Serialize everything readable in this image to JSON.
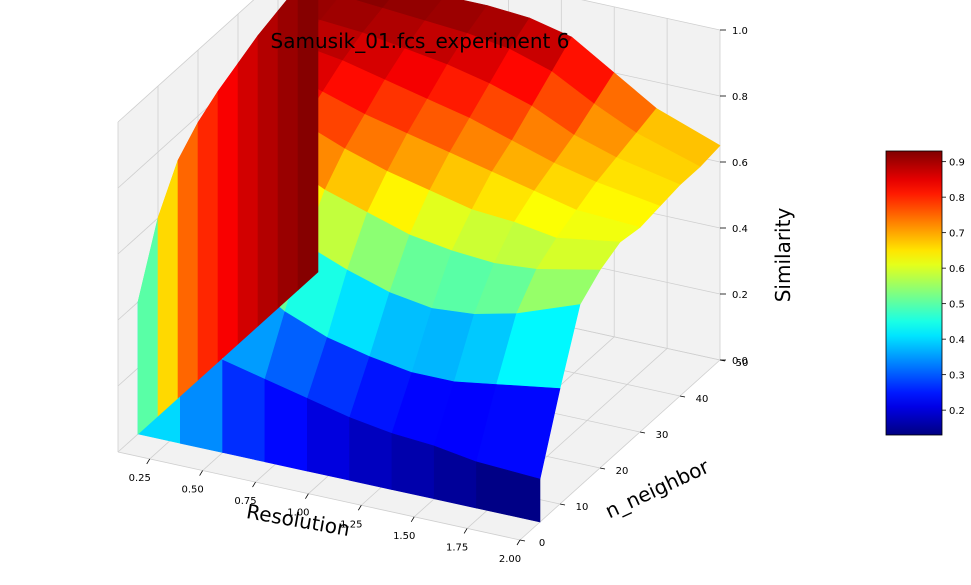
{
  "chart_data": {
    "type": "surface",
    "title": "Samusik_01.fcs_experiment 6",
    "xlabel": "Resolution",
    "ylabel": "n_neighbor",
    "zlabel": "Similarity",
    "xlim": [
      0.1,
      2.0
    ],
    "ylim": [
      0,
      50
    ],
    "zlim": [
      0.0,
      1.0
    ],
    "x_ticks": [
      "0.25",
      "0.50",
      "0.75",
      "1.00",
      "1.25",
      "1.50",
      "1.75",
      "2.00"
    ],
    "y_ticks": [
      "0",
      "10",
      "20",
      "30",
      "40",
      "50"
    ],
    "z_ticks": [
      "0.0",
      "0.2",
      "0.4",
      "0.6",
      "0.8",
      "1.0"
    ],
    "x": [
      0.1,
      0.3,
      0.5,
      0.7,
      0.9,
      1.1,
      1.3,
      1.5,
      1.7,
      2.0
    ],
    "y": [
      5,
      10,
      15,
      20,
      25,
      30,
      35,
      40,
      45,
      50
    ],
    "z": [
      [
        0.4,
        0.4,
        0.28,
        0.25,
        0.22,
        0.19,
        0.17,
        0.16,
        0.14,
        0.13
      ],
      [
        0.6,
        0.62,
        0.48,
        0.4,
        0.35,
        0.32,
        0.3,
        0.3,
        0.32,
        0.35
      ],
      [
        0.72,
        0.74,
        0.62,
        0.55,
        0.5,
        0.46,
        0.44,
        0.45,
        0.48,
        0.55
      ],
      [
        0.78,
        0.8,
        0.72,
        0.66,
        0.62,
        0.58,
        0.56,
        0.55,
        0.56,
        0.6
      ],
      [
        0.82,
        0.83,
        0.78,
        0.73,
        0.69,
        0.66,
        0.63,
        0.62,
        0.6,
        0.63
      ],
      [
        0.85,
        0.86,
        0.82,
        0.78,
        0.75,
        0.72,
        0.69,
        0.66,
        0.63,
        0.62
      ],
      [
        0.88,
        0.88,
        0.86,
        0.83,
        0.8,
        0.77,
        0.73,
        0.69,
        0.66,
        0.63
      ],
      [
        0.9,
        0.9,
        0.89,
        0.87,
        0.85,
        0.82,
        0.78,
        0.72,
        0.68,
        0.64
      ],
      [
        0.92,
        0.92,
        0.91,
        0.9,
        0.89,
        0.87,
        0.83,
        0.76,
        0.7,
        0.64
      ],
      [
        0.93,
        0.93,
        0.93,
        0.92,
        0.92,
        0.91,
        0.88,
        0.8,
        0.72,
        0.65
      ]
    ],
    "colormap": "jet",
    "colorbar": {
      "ticks": [
        "0.2",
        "0.3",
        "0.4",
        "0.5",
        "0.6",
        "0.7",
        "0.8",
        "0.9"
      ],
      "range": [
        0.13,
        0.93
      ]
    },
    "grid": true,
    "pane_color": "#f2f2f2",
    "grid_color": "#cfcfcf"
  }
}
